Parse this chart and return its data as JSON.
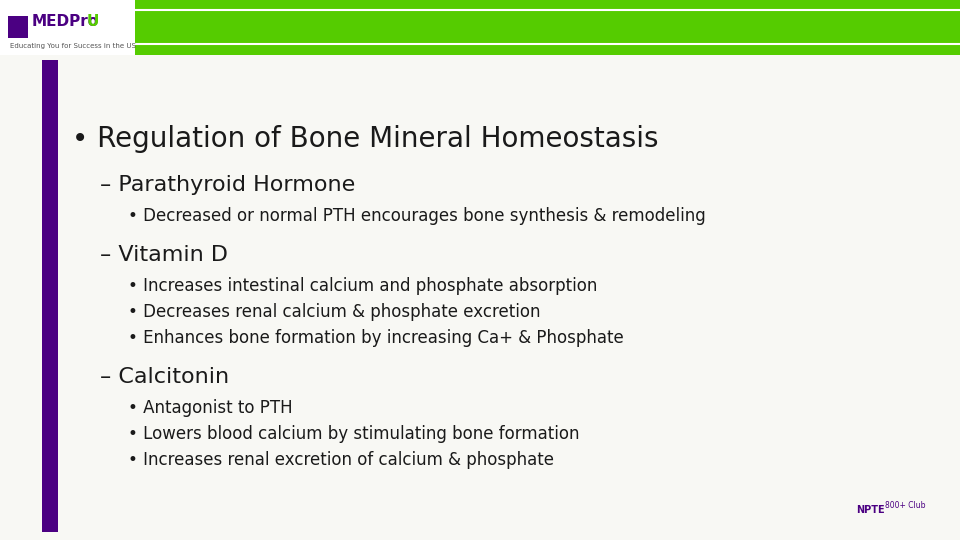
{
  "bg_color": "#f8f8f4",
  "header_green": "#55cc00",
  "sidebar_purple": "#4b0082",
  "title_bullet": "• Regulation of Bone Mineral Homeostasis",
  "title_fontsize": 20,
  "sub1": "– Parathyroid Hormone",
  "sub_fontsize": 16,
  "sub1_bullet1": "• Decreased or normal PTH encourages bone synthesis & remodeling",
  "sub2": "– Vitamin D",
  "sub2_bullet1": "• Increases intestinal calcium and phosphate absorption",
  "sub2_bullet2": "• Decreases renal calcium & phosphate excretion",
  "sub2_bullet3": "• Enhances bone formation by increasing Ca+ & Phosphate",
  "sub3": "– Calcitonin",
  "sub3_bullet1": "• Antagonist to PTH",
  "sub3_bullet2": "• Lowers blood calcium by stimulating bone formation",
  "sub3_bullet3": "• Increases renal excretion of calcium & phosphate",
  "bullet_fontsize": 12,
  "white_line_color": "#ffffff",
  "text_color": "#1a1a1a"
}
